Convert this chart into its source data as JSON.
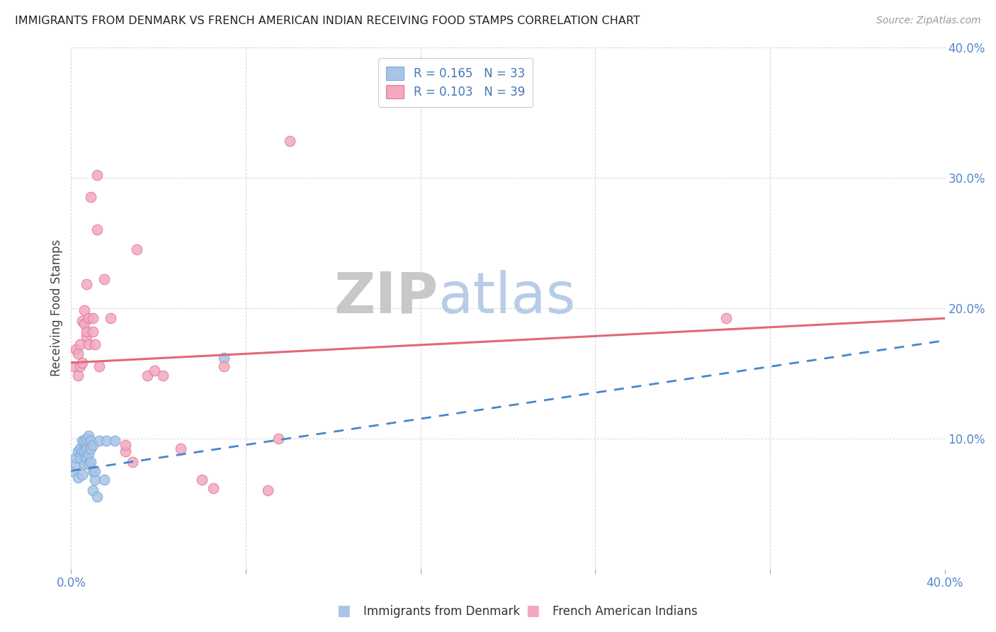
{
  "title": "IMMIGRANTS FROM DENMARK VS FRENCH AMERICAN INDIAN RECEIVING FOOD STAMPS CORRELATION CHART",
  "source": "Source: ZipAtlas.com",
  "ylabel": "Receiving Food Stamps",
  "xlim": [
    0.0,
    0.4
  ],
  "ylim": [
    0.0,
    0.4
  ],
  "ytick_vals": [
    0.0,
    0.1,
    0.2,
    0.3,
    0.4
  ],
  "ytick_labels": [
    "",
    "10.0%",
    "20.0%",
    "30.0%",
    "40.0%"
  ],
  "xtick_vals": [
    0.0,
    0.08,
    0.16,
    0.24,
    0.32,
    0.4
  ],
  "xtick_labels": [
    "0.0%",
    "",
    "",
    "",
    "",
    "40.0%"
  ],
  "legend_r1": "R = 0.165   N = 33",
  "legend_r2": "R = 0.103   N = 39",
  "denmark_color": "#a8c4e8",
  "denmark_edge": "#7aaad4",
  "france_color": "#f4a8c0",
  "france_edge": "#e07898",
  "trendline_denmark_color": "#4488cc",
  "trendline_france_color": "#e06878",
  "background_color": "#ffffff",
  "denmark_scatter_x": [
    0.001,
    0.002,
    0.002,
    0.003,
    0.003,
    0.004,
    0.004,
    0.005,
    0.005,
    0.005,
    0.006,
    0.006,
    0.006,
    0.007,
    0.007,
    0.007,
    0.008,
    0.008,
    0.008,
    0.009,
    0.009,
    0.009,
    0.01,
    0.01,
    0.01,
    0.011,
    0.011,
    0.012,
    0.013,
    0.015,
    0.016,
    0.02,
    0.07
  ],
  "denmark_scatter_y": [
    0.075,
    0.08,
    0.085,
    0.07,
    0.09,
    0.085,
    0.092,
    0.072,
    0.09,
    0.098,
    0.08,
    0.09,
    0.098,
    0.085,
    0.092,
    0.1,
    0.08,
    0.088,
    0.102,
    0.082,
    0.092,
    0.098,
    0.06,
    0.075,
    0.095,
    0.068,
    0.075,
    0.055,
    0.098,
    0.068,
    0.098,
    0.098,
    0.162
  ],
  "france_scatter_x": [
    0.001,
    0.002,
    0.003,
    0.003,
    0.004,
    0.004,
    0.005,
    0.005,
    0.006,
    0.006,
    0.007,
    0.007,
    0.007,
    0.008,
    0.008,
    0.009,
    0.01,
    0.01,
    0.011,
    0.012,
    0.012,
    0.013,
    0.015,
    0.018,
    0.025,
    0.025,
    0.028,
    0.03,
    0.035,
    0.038,
    0.042,
    0.05,
    0.06,
    0.065,
    0.07,
    0.09,
    0.095,
    0.1,
    0.3
  ],
  "france_scatter_y": [
    0.155,
    0.168,
    0.148,
    0.165,
    0.155,
    0.172,
    0.158,
    0.19,
    0.188,
    0.198,
    0.178,
    0.182,
    0.218,
    0.172,
    0.192,
    0.285,
    0.182,
    0.192,
    0.172,
    0.26,
    0.302,
    0.155,
    0.222,
    0.192,
    0.09,
    0.095,
    0.082,
    0.245,
    0.148,
    0.152,
    0.148,
    0.092,
    0.068,
    0.062,
    0.155,
    0.06,
    0.1,
    0.328,
    0.192
  ],
  "denmark_trend_x": [
    0.0,
    0.4
  ],
  "denmark_trend_y": [
    0.075,
    0.175
  ],
  "france_trend_x": [
    0.0,
    0.4
  ],
  "france_trend_y": [
    0.158,
    0.192
  ],
  "watermark_zip_color": "#c8c8c8",
  "watermark_atlas_color": "#b8cce8"
}
